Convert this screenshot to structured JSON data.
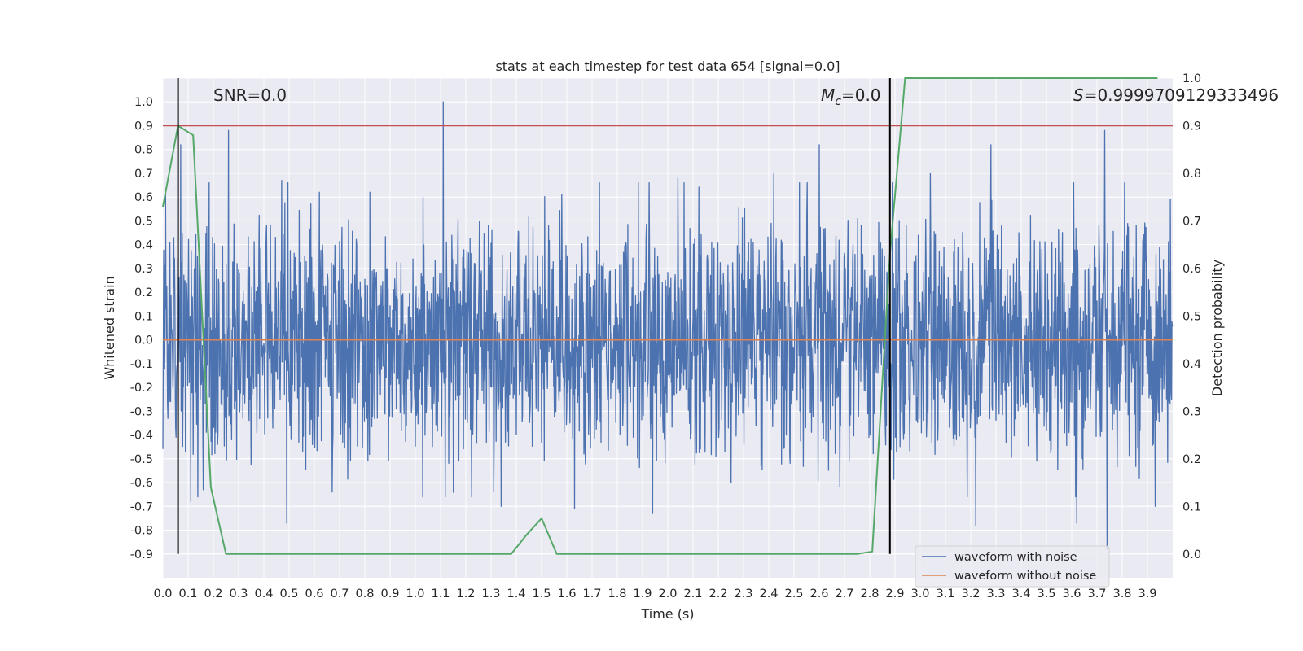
{
  "chart_data": {
    "type": "line",
    "title": "stats at each timestep for test data 654 [signal=0.0]",
    "xlabel": "Time (s)",
    "ylabel": "Whitened strain",
    "ylabel_right": "Detection probability",
    "xlim": [
      0.0,
      4.0
    ],
    "ylim": [
      -1.0,
      1.1
    ],
    "ylim_right": [
      -0.05,
      1.0
    ],
    "x_ticks": [
      "0.0",
      "0.1",
      "0.2",
      "0.3",
      "0.4",
      "0.5",
      "0.6",
      "0.7",
      "0.8",
      "0.9",
      "1.0",
      "1.1",
      "1.2",
      "1.3",
      "1.4",
      "1.5",
      "1.6",
      "1.7",
      "1.8",
      "1.9",
      "2.0",
      "2.1",
      "2.2",
      "2.3",
      "2.4",
      "2.5",
      "2.6",
      "2.7",
      "2.8",
      "2.9",
      "3.0",
      "3.1",
      "3.2",
      "3.3",
      "3.4",
      "3.5",
      "3.6",
      "3.7",
      "3.8",
      "3.9"
    ],
    "y_ticks": [
      "1.0",
      "0.9",
      "0.8",
      "0.7",
      "0.6",
      "0.5",
      "0.4",
      "0.3",
      "0.2",
      "0.1",
      "0.0",
      "-0.1",
      "-0.2",
      "-0.3",
      "-0.4",
      "-0.5",
      "-0.6",
      "-0.7",
      "-0.8",
      "-0.9"
    ],
    "y_tick_values": [
      1.0,
      0.9,
      0.8,
      0.7,
      0.6,
      0.5,
      0.4,
      0.3,
      0.2,
      0.1,
      0.0,
      -0.1,
      -0.2,
      -0.3,
      -0.4,
      -0.5,
      -0.6,
      -0.7,
      -0.8,
      -0.9
    ],
    "y2_ticks": [
      "1.0",
      "0.9",
      "0.8",
      "0.7",
      "0.6",
      "0.5",
      "0.4",
      "0.3",
      "0.2",
      "0.1",
      "0.0"
    ],
    "y2_tick_values": [
      1.0,
      0.9,
      0.8,
      0.7,
      0.6,
      0.5,
      0.4,
      0.3,
      0.2,
      0.1,
      0.0
    ],
    "grid": true,
    "legend_position": "lower-right",
    "annotations": {
      "snr": "SNR=0.0",
      "mc_symbol": "M",
      "mc_subscript": "c",
      "mc_value": "=0.0",
      "s_symbol": "S",
      "s_value": "=0.9999709129333496"
    },
    "vertical_markers_x": [
      0.06,
      2.88
    ],
    "threshold_right": 0.9,
    "series": [
      {
        "name": "waveform with noise",
        "color": "#4c72b0",
        "axis": "left",
        "note_values": "dense noise; envelope approx peaks shown",
        "peaks": [
          [
            0.01,
            0.63
          ],
          [
            0.07,
            0.82
          ],
          [
            0.26,
            0.88
          ],
          [
            0.41,
            0.48
          ],
          [
            0.47,
            0.67
          ],
          [
            0.62,
            0.62
          ],
          [
            0.82,
            0.62
          ],
          [
            1.03,
            0.6
          ],
          [
            1.11,
            1.0
          ],
          [
            1.58,
            0.61
          ],
          [
            2.04,
            0.68
          ],
          [
            2.42,
            0.7
          ],
          [
            2.6,
            0.82
          ],
          [
            3.04,
            0.7
          ],
          [
            3.28,
            0.82
          ],
          [
            3.73,
            0.88
          ],
          [
            3.99,
            0.59
          ]
        ],
        "troughs": [
          [
            0.02,
            -0.33
          ],
          [
            0.11,
            -0.68
          ],
          [
            0.16,
            -0.63
          ],
          [
            0.49,
            -0.77
          ],
          [
            0.67,
            -0.64
          ],
          [
            1.34,
            -0.7
          ],
          [
            1.63,
            -0.71
          ],
          [
            1.94,
            -0.73
          ],
          [
            2.25,
            -0.6
          ],
          [
            3.22,
            -0.78
          ],
          [
            3.62,
            -0.77
          ],
          [
            3.74,
            -0.88
          ],
          [
            3.93,
            -0.7
          ]
        ]
      },
      {
        "name": "waveform without noise",
        "color": "#dd8452",
        "axis": "left",
        "x": [
          0.0,
          4.0
        ],
        "values": [
          0.0,
          0.0
        ]
      },
      {
        "name": "",
        "color": "#55a868",
        "axis": "right",
        "x": [
          0.0,
          0.06,
          0.12,
          0.19,
          0.25,
          0.31,
          1.31,
          1.38,
          1.44,
          1.5,
          1.56,
          1.62,
          2.75,
          2.81,
          2.88,
          2.94,
          3.94
        ],
        "values": [
          0.73,
          0.9,
          0.88,
          0.14,
          0.0,
          0.0,
          0.0,
          0.0,
          0.04,
          0.075,
          0.0,
          0.0,
          0.0,
          0.005,
          0.63,
          1.0,
          1.0
        ]
      },
      {
        "name": "",
        "color": "#c44e52",
        "axis": "right",
        "x": [
          0.0,
          4.0
        ],
        "values": [
          0.9,
          0.9
        ]
      }
    ]
  }
}
